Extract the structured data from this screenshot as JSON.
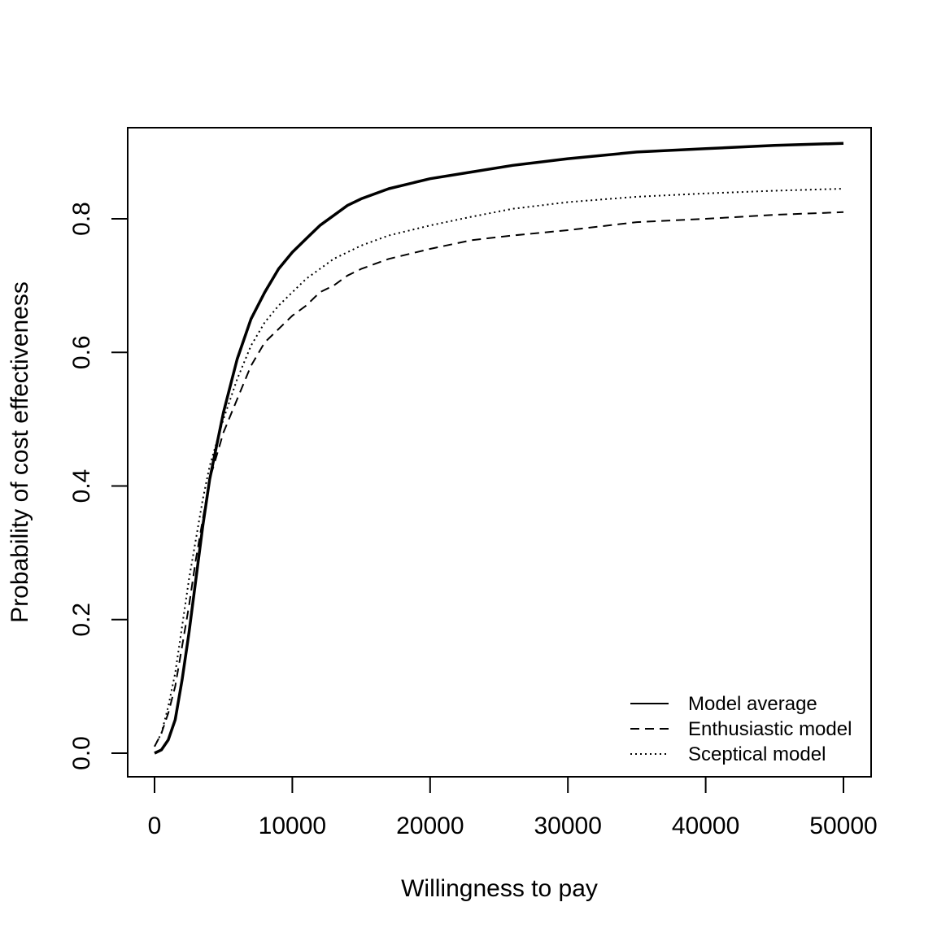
{
  "chart_data": {
    "type": "line",
    "xlabel": "Willingness to pay",
    "ylabel": "Probability of cost effectiveness",
    "xlim": [
      0,
      50000
    ],
    "ylim": [
      0,
      0.9
    ],
    "xticks": [
      0,
      10000,
      20000,
      30000,
      40000,
      50000
    ],
    "xtick_labels": [
      "0",
      "10000",
      "20000",
      "30000",
      "40000",
      "50000"
    ],
    "yticks": [
      0,
      0.2,
      0.4,
      0.6,
      0.8
    ],
    "ytick_labels": [
      "0.0",
      "0.2",
      "0.4",
      "0.6",
      "0.8"
    ],
    "grid": false,
    "legend_position": "bottom-right",
    "series": [
      {
        "name": "Model average",
        "style": "solid-thick",
        "x": [
          0,
          500,
          1000,
          1500,
          2000,
          2500,
          3000,
          3500,
          4000,
          5000,
          6000,
          7000,
          8000,
          9000,
          10000,
          11000,
          12000,
          13000,
          14000,
          15000,
          17000,
          20000,
          23000,
          26000,
          30000,
          35000,
          40000,
          45000,
          50000
        ],
        "y": [
          0.0,
          0.005,
          0.02,
          0.05,
          0.11,
          0.18,
          0.26,
          0.34,
          0.41,
          0.51,
          0.59,
          0.65,
          0.69,
          0.725,
          0.75,
          0.77,
          0.79,
          0.805,
          0.82,
          0.83,
          0.845,
          0.86,
          0.87,
          0.88,
          0.89,
          0.9,
          0.905,
          0.91,
          0.913
        ]
      },
      {
        "name": "Enthusiastic model",
        "style": "dashed",
        "x": [
          0,
          500,
          1000,
          1500,
          2000,
          2500,
          3000,
          3500,
          4000,
          5000,
          6000,
          7000,
          8000,
          9000,
          10000,
          11000,
          12000,
          13000,
          14000,
          15000,
          17000,
          20000,
          23000,
          26000,
          30000,
          35000,
          40000,
          45000,
          50000
        ],
        "y": [
          0.01,
          0.03,
          0.06,
          0.1,
          0.16,
          0.22,
          0.29,
          0.35,
          0.41,
          0.48,
          0.53,
          0.58,
          0.615,
          0.635,
          0.655,
          0.67,
          0.69,
          0.7,
          0.715,
          0.725,
          0.74,
          0.755,
          0.768,
          0.775,
          0.783,
          0.795,
          0.8,
          0.806,
          0.81
        ]
      },
      {
        "name": "Sceptical model",
        "style": "dotted",
        "x": [
          0,
          500,
          1000,
          1500,
          2000,
          2500,
          3000,
          3500,
          4000,
          5000,
          6000,
          7000,
          8000,
          9000,
          10000,
          11000,
          12000,
          13000,
          14000,
          15000,
          17000,
          20000,
          23000,
          26000,
          30000,
          35000,
          40000,
          45000,
          50000
        ],
        "y": [
          0.01,
          0.03,
          0.07,
          0.12,
          0.19,
          0.26,
          0.32,
          0.38,
          0.43,
          0.5,
          0.56,
          0.61,
          0.645,
          0.67,
          0.69,
          0.71,
          0.725,
          0.74,
          0.75,
          0.76,
          0.775,
          0.79,
          0.803,
          0.815,
          0.825,
          0.833,
          0.838,
          0.842,
          0.845
        ]
      }
    ]
  }
}
